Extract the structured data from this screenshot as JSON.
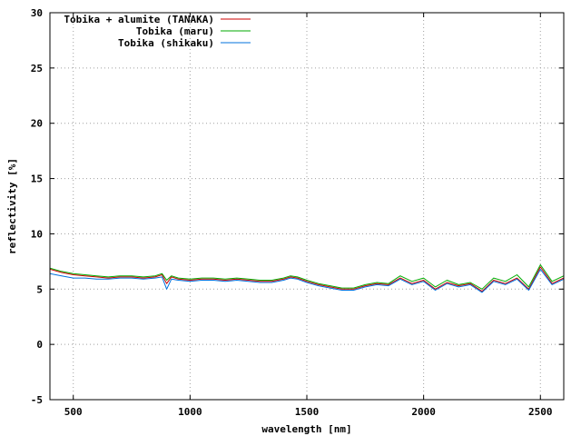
{
  "chart_data": {
    "type": "line",
    "title": "",
    "xlabel": "wavelength [nm]",
    "ylabel": "reflectivity [%]",
    "xlim": [
      400,
      2600
    ],
    "ylim": [
      -5,
      30
    ],
    "xticks": [
      500,
      1000,
      1500,
      2000,
      2500
    ],
    "yticks": [
      -5,
      0,
      5,
      10,
      15,
      20,
      25,
      30
    ],
    "grid": true,
    "legend_position": "top-left",
    "series": [
      {
        "name": "Tobika + alumite (TANAKA)",
        "color": "#cc0000",
        "x": [
          400,
          450,
          500,
          550,
          600,
          650,
          700,
          750,
          800,
          850,
          880,
          900,
          920,
          950,
          1000,
          1050,
          1100,
          1150,
          1200,
          1250,
          1300,
          1350,
          1400,
          1430,
          1460,
          1500,
          1550,
          1600,
          1650,
          1700,
          1750,
          1800,
          1850,
          1900,
          1950,
          2000,
          2050,
          2100,
          2150,
          2200,
          2250,
          2300,
          2350,
          2400,
          2450,
          2500,
          2550,
          2600
        ],
        "y": [
          6.8,
          6.5,
          6.3,
          6.2,
          6.1,
          6.0,
          6.1,
          6.1,
          6.0,
          6.1,
          6.3,
          5.5,
          6.1,
          5.9,
          5.8,
          5.9,
          5.9,
          5.8,
          5.9,
          5.8,
          5.7,
          5.7,
          5.9,
          6.1,
          6.0,
          5.7,
          5.4,
          5.2,
          5.0,
          5.0,
          5.3,
          5.5,
          5.4,
          6.0,
          5.5,
          5.8,
          5.0,
          5.6,
          5.3,
          5.5,
          4.8,
          5.8,
          5.5,
          6.0,
          5.0,
          7.0,
          5.5,
          6.0
        ]
      },
      {
        "name": "Tobika (maru)",
        "color": "#00aa00",
        "x": [
          400,
          450,
          500,
          550,
          600,
          650,
          700,
          750,
          800,
          850,
          880,
          900,
          920,
          950,
          1000,
          1050,
          1100,
          1150,
          1200,
          1250,
          1300,
          1350,
          1400,
          1430,
          1460,
          1500,
          1550,
          1600,
          1650,
          1700,
          1750,
          1800,
          1850,
          1900,
          1950,
          2000,
          2050,
          2100,
          2150,
          2200,
          2250,
          2300,
          2350,
          2400,
          2450,
          2500,
          2550,
          2600
        ],
        "y": [
          6.9,
          6.6,
          6.4,
          6.3,
          6.2,
          6.1,
          6.2,
          6.2,
          6.1,
          6.2,
          6.4,
          5.8,
          6.2,
          6.0,
          5.9,
          6.0,
          6.0,
          5.9,
          6.0,
          5.9,
          5.8,
          5.8,
          6.0,
          6.2,
          6.1,
          5.8,
          5.5,
          5.3,
          5.1,
          5.1,
          5.4,
          5.6,
          5.5,
          6.2,
          5.7,
          6.0,
          5.2,
          5.8,
          5.4,
          5.6,
          5.0,
          6.0,
          5.7,
          6.3,
          5.2,
          7.2,
          5.7,
          6.2
        ]
      },
      {
        "name": "Tobika (shikaku)",
        "color": "#0070dd",
        "x": [
          400,
          450,
          500,
          550,
          600,
          650,
          700,
          750,
          800,
          850,
          880,
          900,
          920,
          950,
          1000,
          1050,
          1100,
          1150,
          1200,
          1250,
          1300,
          1350,
          1400,
          1430,
          1460,
          1500,
          1550,
          1600,
          1650,
          1700,
          1750,
          1800,
          1850,
          1900,
          1950,
          2000,
          2050,
          2100,
          2150,
          2200,
          2250,
          2300,
          2350,
          2400,
          2450,
          2500,
          2550,
          2600
        ],
        "y": [
          6.4,
          6.2,
          6.0,
          6.0,
          5.9,
          5.9,
          6.0,
          6.0,
          5.9,
          6.0,
          6.1,
          5.0,
          5.9,
          5.8,
          5.7,
          5.8,
          5.8,
          5.7,
          5.8,
          5.7,
          5.6,
          5.6,
          5.8,
          6.0,
          5.9,
          5.6,
          5.3,
          5.1,
          4.9,
          4.9,
          5.2,
          5.4,
          5.3,
          5.9,
          5.4,
          5.7,
          4.9,
          5.5,
          5.2,
          5.4,
          4.7,
          5.7,
          5.4,
          5.9,
          4.9,
          6.8,
          5.4,
          5.9
        ]
      }
    ]
  }
}
